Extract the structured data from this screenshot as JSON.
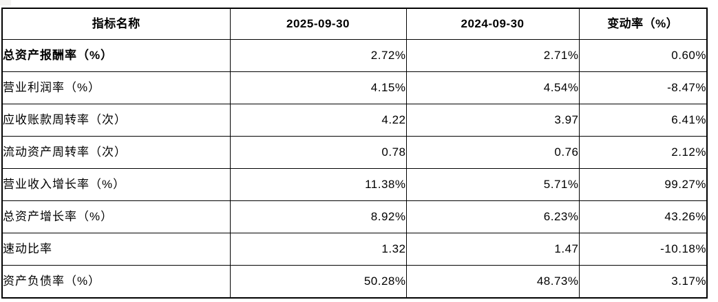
{
  "colors": {
    "background": "#ffffff",
    "border": "#000000",
    "text": "#000000"
  },
  "table": {
    "headers": {
      "indicator": "指标名称",
      "period_current": "2025-09-30",
      "period_prior": "2024-09-30",
      "change_rate": "变动率（%）"
    },
    "rows": [
      {
        "name": "总资产报酬率（%）",
        "v2025": "2.72%",
        "v2024": "2.71%",
        "change": "0.60%"
      },
      {
        "name": "营业利润率（%）",
        "v2025": "4.15%",
        "v2024": "4.54%",
        "change": "-8.47%"
      },
      {
        "name": "应收账款周转率（次）",
        "v2025": "4.22",
        "v2024": "3.97",
        "change": "6.41%"
      },
      {
        "name": "流动资产周转率（次）",
        "v2025": "0.78",
        "v2024": "0.76",
        "change": "2.12%"
      },
      {
        "name": "营业收入增长率（%）",
        "v2025": "11.38%",
        "v2024": "5.71%",
        "change": "99.27%"
      },
      {
        "name": "总资产增长率（%）",
        "v2025": "8.92%",
        "v2024": "6.23%",
        "change": "43.26%"
      },
      {
        "name": "速动比率",
        "v2025": "1.32",
        "v2024": "1.47",
        "change": "-10.18%"
      },
      {
        "name": "资产负债率（%）",
        "v2025": "50.28%",
        "v2024": "48.73%",
        "change": "3.17%"
      }
    ]
  }
}
